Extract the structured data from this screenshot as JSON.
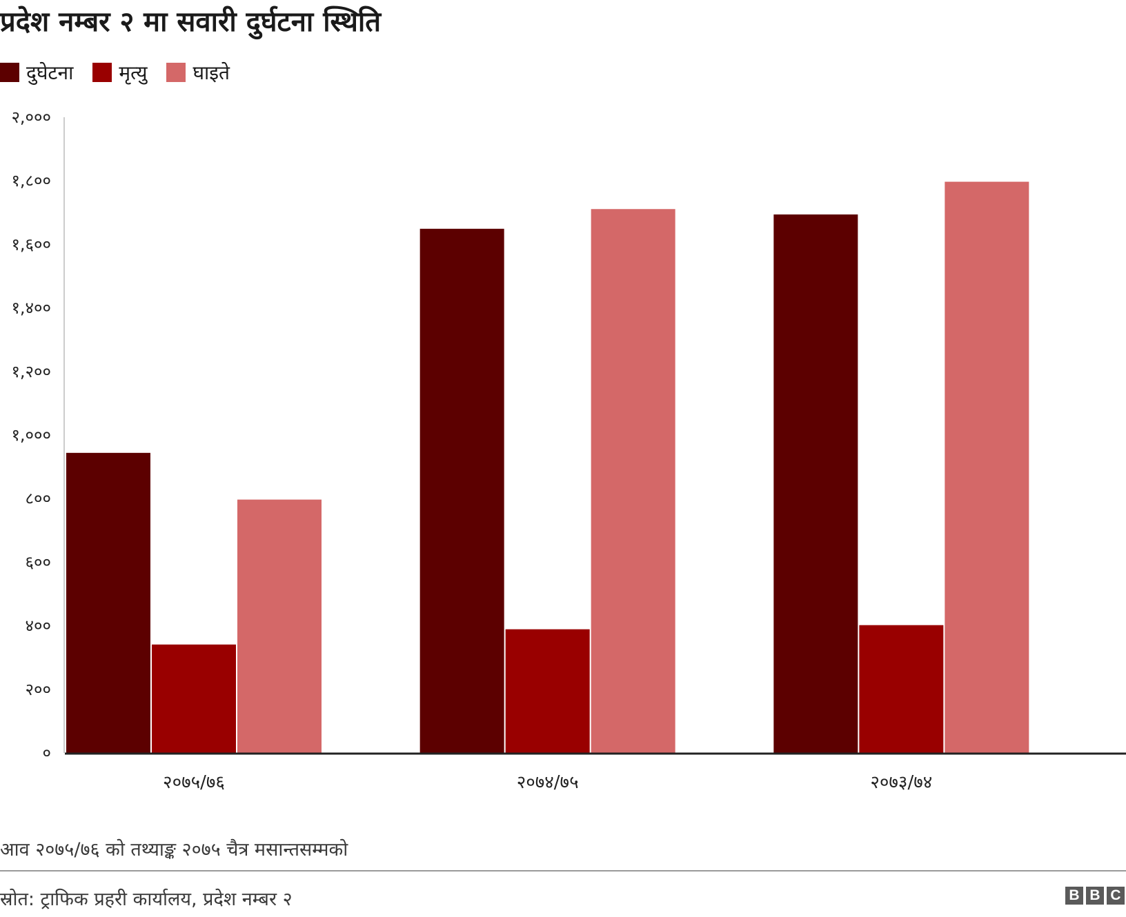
{
  "chart_data": {
    "type": "bar",
    "title": "प्रदेश नम्बर २ मा सवारी दुर्घटना स्थिति",
    "categories": [
      "२०७५/७६",
      "२०७४/७५",
      "२०७३/७४"
    ],
    "series": [
      {
        "name": "दुघेटना",
        "color": "#5c0000",
        "values": [
          944,
          1649,
          1694
        ]
      },
      {
        "name": "मृत्यु",
        "color": "#990000",
        "values": [
          341,
          389,
          402
        ]
      },
      {
        "name": "घाइते",
        "color": "#d46868",
        "values": [
          797,
          1711,
          1797
        ]
      }
    ],
    "ylim": [
      0,
      2000
    ],
    "yticks": [
      0,
      200,
      400,
      600,
      800,
      1000,
      1200,
      1400,
      1600,
      1800,
      2000
    ],
    "ytick_labels": [
      "०",
      "२००",
      "४००",
      "६००",
      "८००",
      "१,०००",
      "१,२००",
      "१,४००",
      "१,६००",
      "१,८००",
      "२,०००"
    ],
    "xlabel": "",
    "ylabel": "",
    "legend_position": "top-left",
    "grid": false
  },
  "footnote": "आव २०७५/७६ को तथ्याङ्क २०७५ चैत्र मसान्तसम्मको",
  "source": "स्रोत: ट्राफिक प्रहरी कार्यालय, प्रदेश नम्बर २",
  "logo": [
    "B",
    "B",
    "C"
  ]
}
